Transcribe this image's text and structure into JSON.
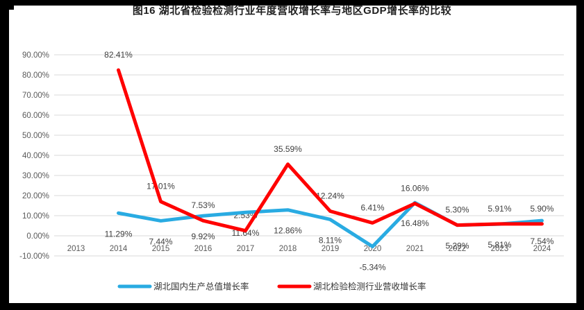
{
  "title": "图16  湖北省检验检测行业年度营收增长率与地区GDP增长率的比较",
  "chart_data": {
    "type": "line",
    "title": "图16  湖北省检验检测行业年度营收增长率与地区GDP增长率的比较",
    "categories": [
      "2013",
      "2014",
      "2015",
      "2016",
      "2017",
      "2018",
      "2019",
      "2020",
      "2021",
      "2022",
      "2023",
      "2024"
    ],
    "series": [
      {
        "name": "湖北国内生产总值增长率",
        "color": "#29ABE2",
        "values": [
          null,
          11.29,
          7.44,
          9.92,
          11.64,
          12.86,
          8.11,
          -5.34,
          16.48,
          5.29,
          5.81,
          7.54
        ]
      },
      {
        "name": "湖北检验检测行业营收增长率",
        "color": "#FF0000",
        "values": [
          null,
          82.41,
          17.01,
          7.53,
          2.53,
          35.59,
          12.24,
          6.41,
          16.06,
          5.3,
          5.91,
          5.9
        ]
      }
    ],
    "y_axis": {
      "min": -10,
      "max": 90,
      "step": 10,
      "tick_labels": [
        "90.00%",
        "80.00%",
        "70.00%",
        "60.00%",
        "50.00%",
        "40.00%",
        "30.00%",
        "20.00%",
        "10.00%",
        "0.00%",
        "-10.00%"
      ]
    },
    "grid": true,
    "data_labels": true,
    "label_format": "0.00%",
    "legend": {
      "position": "bottom",
      "entries": [
        "湖北国内生产总值增长率",
        "湖北检验检测行业营收增长率"
      ]
    },
    "colors": {
      "grid": "#D9D9D9",
      "axis_text": "#595959",
      "data_label_text": "#404040",
      "legend_text": "#333333",
      "frame": "#000000",
      "background": "#FFFFFF"
    }
  }
}
